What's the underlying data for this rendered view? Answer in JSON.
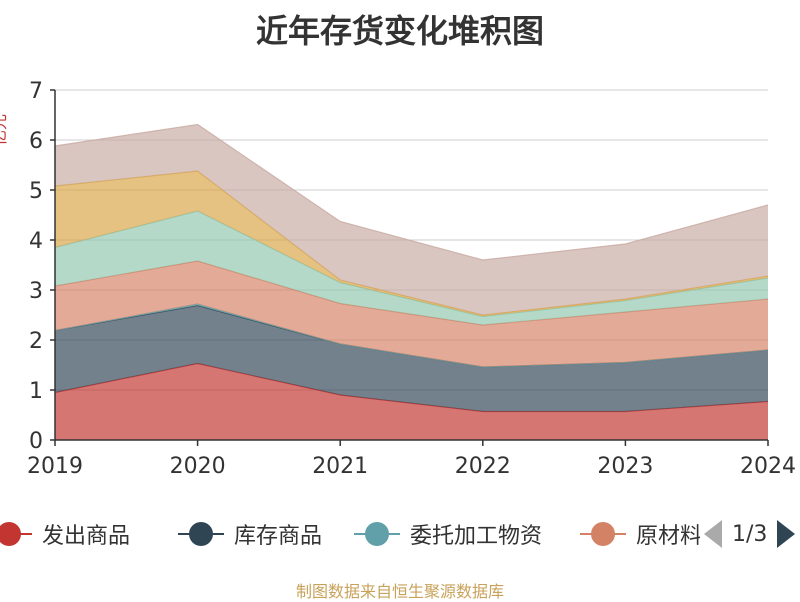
{
  "title": "近年存货变化堆积图",
  "ylabel_partial": "亿元",
  "source": "制图数据来自恒生聚源数据库",
  "pager": {
    "text": "1/3"
  },
  "chart_data": {
    "type": "area",
    "stacked": true,
    "x": [
      "2019",
      "2020",
      "2021",
      "2022",
      "2023",
      "2024"
    ],
    "ylim": [
      0,
      7
    ],
    "yticks": [
      "0",
      "1",
      "2",
      "3",
      "4",
      "5",
      "6",
      "7"
    ],
    "grid": true,
    "legend_position": "bottom",
    "series": [
      {
        "name": "发出商品",
        "color": "#c23531",
        "values": [
          0.95,
          1.53,
          0.9,
          0.57,
          0.57,
          0.77
        ]
      },
      {
        "name": "库存商品",
        "color": "#2f4554",
        "values": [
          1.24,
          1.16,
          1.02,
          0.89,
          0.98,
          1.03
        ]
      },
      {
        "name": "委托加工物资",
        "color": "#61a0a8",
        "values": [
          0.0,
          0.03,
          0.0,
          0.0,
          0.0,
          0.0
        ]
      },
      {
        "name": "原材料",
        "color": "#d48265",
        "values": [
          0.89,
          0.86,
          0.81,
          0.84,
          1.01,
          1.02
        ]
      },
      {
        "name": "",
        "color": "#91c7ae",
        "values": [
          0.77,
          1.0,
          0.42,
          0.17,
          0.23,
          0.42
        ]
      },
      {
        "name": "",
        "color": "#d8a447",
        "values": [
          1.23,
          0.8,
          0.05,
          0.03,
          0.03,
          0.04
        ]
      },
      {
        "name": "",
        "color": "#c9aba3",
        "values": [
          0.8,
          0.93,
          1.17,
          1.1,
          1.1,
          1.42
        ]
      }
    ]
  }
}
